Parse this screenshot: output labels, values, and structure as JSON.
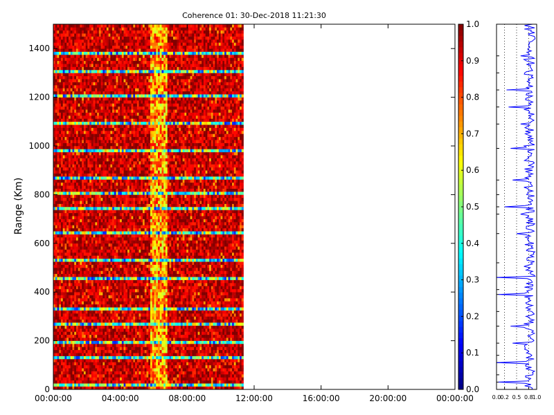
{
  "chart_data": [
    {
      "type": "heatmap",
      "title": "Coherence 01: 30-Dec-2018 11:21:30",
      "ylabel": "Range (Km)",
      "xlabel": "",
      "x_ticks": [
        "00:00:00",
        "04:00:00",
        "08:00:00",
        "12:00:00",
        "16:00:00",
        "20:00:00",
        "00:00:00"
      ],
      "x_range_hours": [
        0,
        24
      ],
      "data_end_hours": 11.36,
      "y_ticks": [
        0,
        200,
        400,
        600,
        800,
        1000,
        1200,
        1400
      ],
      "ylim": [
        0,
        1500
      ],
      "colormap": "jet",
      "colorbar": {
        "range": [
          0.0,
          1.0
        ],
        "ticks": [
          "0.0",
          "0.1",
          "0.2",
          "0.3",
          "0.4",
          "0.5",
          "0.6",
          "0.7",
          "0.8",
          "0.9",
          "1.0"
        ]
      },
      "typical_coherence": 0.9,
      "low_coherence_ranges_km": [
        10,
        120,
        190,
        260,
        330,
        450,
        520,
        640,
        740,
        800,
        860,
        980,
        1090,
        1200,
        1300,
        1370
      ],
      "low_coherence_time_hours": [
        5.8,
        6.8
      ]
    },
    {
      "type": "line",
      "title": "",
      "x_ticks": [
        "0.0",
        "0.2",
        "0.5",
        "0.8",
        "1.0"
      ],
      "xlim": [
        0,
        1
      ],
      "ylim": [
        0,
        1500
      ],
      "grid": "vertical dotted",
      "series_color": "#0000ff",
      "profile": [
        [
          0,
          0.88
        ],
        [
          30,
          0.05
        ],
        [
          60,
          0.9
        ],
        [
          110,
          0.0
        ],
        [
          140,
          0.88
        ],
        [
          190,
          0.4
        ],
        [
          260,
          0.35
        ],
        [
          320,
          0.88
        ],
        [
          390,
          0.05
        ],
        [
          410,
          0.88
        ],
        [
          460,
          0.0
        ],
        [
          520,
          0.85
        ],
        [
          640,
          0.5
        ],
        [
          720,
          0.6
        ],
        [
          750,
          0.2
        ],
        [
          800,
          0.75
        ],
        [
          860,
          0.4
        ],
        [
          990,
          0.35
        ],
        [
          1090,
          0.6
        ],
        [
          1160,
          0.3
        ],
        [
          1230,
          0.25
        ],
        [
          1300,
          0.7
        ],
        [
          1370,
          0.6
        ],
        [
          1500,
          0.9
        ]
      ]
    }
  ],
  "colors": {
    "axis": "#000000",
    "background": "#ffffff",
    "line": "#0000ff"
  }
}
